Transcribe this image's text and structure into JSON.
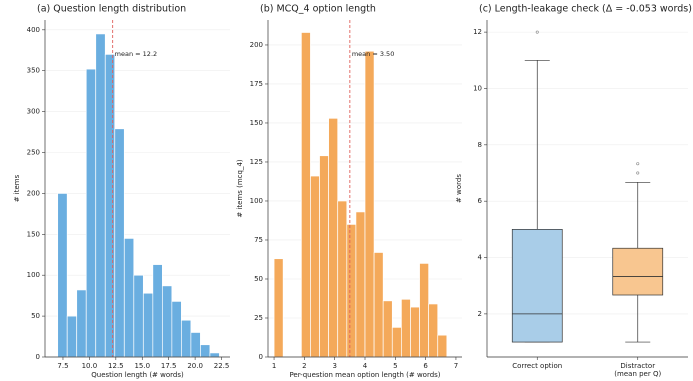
{
  "chart_data": [
    {
      "type": "histogram",
      "title": "(a) Question length distribution",
      "x_label": "Question length (# words)",
      "y_label": "# items",
      "color": "#6aaee0",
      "bins": [
        7.0,
        7.9,
        8.8,
        9.7,
        10.6,
        11.5,
        12.4,
        13.3,
        14.2,
        15.1,
        16.0,
        16.9,
        17.8,
        18.7,
        19.6,
        20.5,
        21.4,
        22.3
      ],
      "values": [
        200,
        50,
        82,
        352,
        395,
        370,
        279,
        145,
        100,
        78,
        113,
        87,
        68,
        45,
        30,
        15,
        5
      ],
      "mean": {
        "value": 12.2,
        "label": "mean = 12.2",
        "color": "#e0605a"
      },
      "xlim": [
        5.8,
        23.3
      ],
      "xticks": [
        7.5,
        {
          "value": 10,
          "label": "10.0"
        },
        12.5,
        {
          "value": 15,
          "label": "15.0"
        },
        17.5,
        {
          "value": 20,
          "label": "20.0"
        },
        22.5
      ],
      "ylim": [
        0,
        412
      ],
      "yticks": [
        0,
        50,
        100,
        150,
        200,
        250,
        300,
        350,
        400
      ],
      "grid": true
    },
    {
      "type": "histogram",
      "title": "(b) MCQ_4 option length",
      "x_label": "Per-question mean option length (# words)",
      "y_label": "# items (mcq_4)",
      "color": "#f4a95a",
      "bins": [
        1.0,
        1.3,
        1.6,
        1.9,
        2.2,
        2.5,
        2.8,
        3.1,
        3.4,
        3.7,
        4.0,
        4.3,
        4.6,
        4.9,
        5.2,
        5.5,
        5.8,
        6.1,
        6.4,
        6.7
      ],
      "values": [
        63,
        0,
        0,
        208,
        116,
        129,
        153,
        100,
        85,
        93,
        196,
        67,
        36,
        19,
        37,
        32,
        60,
        34,
        14
      ],
      "mean": {
        "value": 3.5,
        "label": "mean = 3.50",
        "color": "#e0605a"
      },
      "xlim": [
        0.8,
        7.2
      ],
      "xticks": [
        1,
        2,
        3,
        4,
        5,
        6,
        7
      ],
      "ylim": [
        0,
        216
      ],
      "yticks": [
        0,
        25,
        50,
        75,
        100,
        125,
        150,
        175,
        200
      ],
      "grid": true
    },
    {
      "type": "box",
      "title": "(c) Length-leakage check  (Δ = -0.053 words)",
      "y_label": "# words",
      "categories": [
        "Correct option",
        "Distractor\n(mean per Q)"
      ],
      "series": [
        {
          "color": "#a9cde8",
          "whislo": 1,
          "q1": 1,
          "med": 2,
          "q3": 5,
          "whishi": 11,
          "fliers": [
            12
          ]
        },
        {
          "color": "#f8c690",
          "whislo": 1,
          "q1": 2.67,
          "med": 3.33,
          "q3": 4.33,
          "whishi": 6.67,
          "fliers": [
            7.0,
            7.33
          ]
        }
      ],
      "ylim": [
        0.47,
        12.43
      ],
      "yticks": [
        2,
        4,
        6,
        8,
        10,
        12
      ],
      "grid": true
    }
  ]
}
